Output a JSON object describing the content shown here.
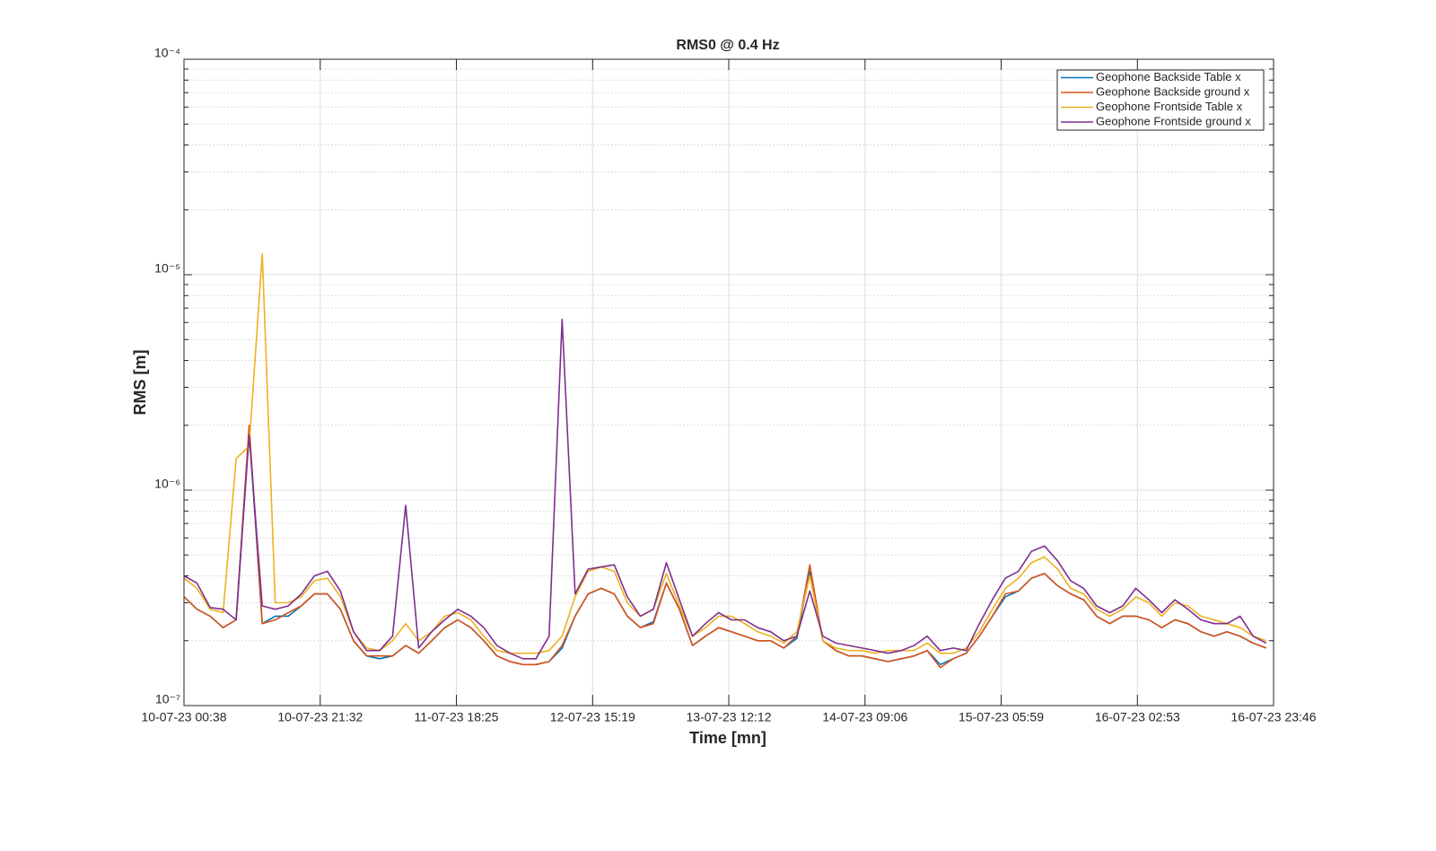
{
  "chart_data": {
    "type": "line",
    "title": "RMS0 @ 0.4 Hz",
    "x_label": "Time [mn]",
    "y_label": "RMS [m]",
    "log_y": true,
    "grid": true,
    "minor_grid": true,
    "legend": "top-right",
    "x": [
      "2023-07-10T00:38",
      "2023-07-10T02:38",
      "2023-07-10T04:38",
      "2023-07-10T06:38",
      "2023-07-10T08:38",
      "2023-07-10T10:38",
      "2023-07-10T12:38",
      "2023-07-10T14:38",
      "2023-07-10T16:38",
      "2023-07-10T18:38",
      "2023-07-10T20:38",
      "2023-07-10T22:38",
      "2023-07-11T00:38",
      "2023-07-11T02:38",
      "2023-07-11T04:38",
      "2023-07-11T06:38",
      "2023-07-11T08:38",
      "2023-07-11T10:38",
      "2023-07-11T12:38",
      "2023-07-11T14:38",
      "2023-07-11T16:38",
      "2023-07-11T18:38",
      "2023-07-11T20:38",
      "2023-07-11T22:38",
      "2023-07-12T00:38",
      "2023-07-12T02:38",
      "2023-07-12T04:38",
      "2023-07-12T06:38",
      "2023-07-12T08:38",
      "2023-07-12T10:38",
      "2023-07-12T12:38",
      "2023-07-12T14:38",
      "2023-07-12T16:38",
      "2023-07-12T18:38",
      "2023-07-12T20:38",
      "2023-07-12T22:38",
      "2023-07-13T00:38",
      "2023-07-13T02:38",
      "2023-07-13T04:38",
      "2023-07-13T06:38",
      "2023-07-13T08:38",
      "2023-07-13T10:38",
      "2023-07-13T12:38",
      "2023-07-13T14:38",
      "2023-07-13T16:38",
      "2023-07-13T18:38",
      "2023-07-13T20:38",
      "2023-07-13T22:38",
      "2023-07-14T00:38",
      "2023-07-14T02:38",
      "2023-07-14T04:38",
      "2023-07-14T06:38",
      "2023-07-14T08:38",
      "2023-07-14T10:38",
      "2023-07-14T12:38",
      "2023-07-14T14:38",
      "2023-07-14T16:38",
      "2023-07-14T18:38",
      "2023-07-14T20:38",
      "2023-07-14T22:38",
      "2023-07-15T00:38",
      "2023-07-15T02:38",
      "2023-07-15T04:38",
      "2023-07-15T06:38",
      "2023-07-15T08:38",
      "2023-07-15T10:38",
      "2023-07-15T12:38",
      "2023-07-15T14:38",
      "2023-07-15T16:38",
      "2023-07-15T18:38",
      "2023-07-15T20:38",
      "2023-07-15T22:38",
      "2023-07-16T00:38",
      "2023-07-16T02:38",
      "2023-07-16T04:38",
      "2023-07-16T06:38",
      "2023-07-16T08:38",
      "2023-07-16T10:38",
      "2023-07-16T12:38",
      "2023-07-16T14:38",
      "2023-07-16T16:38",
      "2023-07-16T18:38",
      "2023-07-16T20:38",
      "2023-07-16T22:38"
    ],
    "xlim": [
      "2023-07-10T00:38",
      "2023-07-16T23:46"
    ],
    "xticks": [
      {
        "value": "2023-07-10T00:38",
        "label": "10-07-23 00:38"
      },
      {
        "value": "2023-07-10T21:32",
        "label": "10-07-23 21:32"
      },
      {
        "value": "2023-07-11T18:25",
        "label": "11-07-23 18:25"
      },
      {
        "value": "2023-07-12T15:19",
        "label": "12-07-23 15:19"
      },
      {
        "value": "2023-07-13T12:12",
        "label": "13-07-23 12:12"
      },
      {
        "value": "2023-07-14T09:06",
        "label": "14-07-23 09:06"
      },
      {
        "value": "2023-07-15T05:59",
        "label": "15-07-23 05:59"
      },
      {
        "value": "2023-07-16T02:53",
        "label": "16-07-23 02:53"
      },
      {
        "value": "2023-07-16T23:46",
        "label": "16-07-23 23:46"
      }
    ],
    "ylim": [
      1e-07,
      0.0001
    ],
    "yticks": [
      {
        "value": 1e-07,
        "label": "10⁻⁷"
      },
      {
        "value": 1e-06,
        "label": "10⁻⁶"
      },
      {
        "value": 1e-05,
        "label": "10⁻⁵"
      },
      {
        "value": 0.0001,
        "label": "10⁻⁴"
      }
    ],
    "series": [
      {
        "name": "Geophone Backside Table x",
        "color": "#0072BD",
        "values": [
          3.2e-07,
          2.8e-07,
          2.6e-07,
          2.3e-07,
          2.5e-07,
          1.9e-06,
          2.4e-07,
          2.6e-07,
          2.6e-07,
          2.9e-07,
          3.3e-07,
          3.3e-07,
          2.8e-07,
          2e-07,
          1.7e-07,
          1.65e-07,
          1.7e-07,
          1.9e-07,
          1.75e-07,
          2e-07,
          2.3e-07,
          2.5e-07,
          2.3e-07,
          2e-07,
          1.7e-07,
          1.6e-07,
          1.55e-07,
          1.55e-07,
          1.6e-07,
          1.85e-07,
          2.6e-07,
          3.3e-07,
          3.5e-07,
          3.3e-07,
          2.6e-07,
          2.3e-07,
          2.45e-07,
          3.7e-07,
          2.8e-07,
          1.9e-07,
          2.1e-07,
          2.3e-07,
          2.2e-07,
          2.1e-07,
          2e-07,
          2e-07,
          1.85e-07,
          2.05e-07,
          4.2e-07,
          2e-07,
          1.8e-07,
          1.7e-07,
          1.7e-07,
          1.65e-07,
          1.6e-07,
          1.65e-07,
          1.7e-07,
          1.8e-07,
          1.55e-07,
          1.65e-07,
          1.75e-07,
          2.1e-07,
          2.6e-07,
          3.2e-07,
          3.4e-07,
          3.9e-07,
          4.1e-07,
          3.6e-07,
          3.3e-07,
          3.1e-07,
          2.6e-07,
          2.4e-07,
          2.6e-07,
          2.6e-07,
          2.5e-07,
          2.3e-07,
          2.5e-07,
          2.4e-07,
          2.2e-07,
          2.1e-07,
          2.2e-07,
          2.1e-07,
          1.95e-07,
          1.85e-07
        ]
      },
      {
        "name": "Geophone Backside ground x",
        "color": "#D95319",
        "values": [
          3.2e-07,
          2.8e-07,
          2.6e-07,
          2.3e-07,
          2.5e-07,
          2e-06,
          2.4e-07,
          2.5e-07,
          2.7e-07,
          2.9e-07,
          3.3e-07,
          3.3e-07,
          2.8e-07,
          2e-07,
          1.7e-07,
          1.7e-07,
          1.7e-07,
          1.9e-07,
          1.75e-07,
          2e-07,
          2.3e-07,
          2.5e-07,
          2.3e-07,
          2e-07,
          1.7e-07,
          1.6e-07,
          1.55e-07,
          1.55e-07,
          1.6e-07,
          1.9e-07,
          2.6e-07,
          3.3e-07,
          3.5e-07,
          3.3e-07,
          2.6e-07,
          2.3e-07,
          2.4e-07,
          3.7e-07,
          2.8e-07,
          1.9e-07,
          2.1e-07,
          2.3e-07,
          2.2e-07,
          2.1e-07,
          2e-07,
          2e-07,
          1.85e-07,
          2.1e-07,
          4.5e-07,
          2e-07,
          1.8e-07,
          1.7e-07,
          1.7e-07,
          1.65e-07,
          1.6e-07,
          1.65e-07,
          1.7e-07,
          1.8e-07,
          1.5e-07,
          1.65e-07,
          1.75e-07,
          2.1e-07,
          2.6e-07,
          3.3e-07,
          3.4e-07,
          3.9e-07,
          4.1e-07,
          3.6e-07,
          3.3e-07,
          3.1e-07,
          2.6e-07,
          2.4e-07,
          2.6e-07,
          2.6e-07,
          2.5e-07,
          2.3e-07,
          2.5e-07,
          2.4e-07,
          2.2e-07,
          2.1e-07,
          2.2e-07,
          2.1e-07,
          1.95e-07,
          1.85e-07
        ]
      },
      {
        "name": "Geophone Frontside Table x",
        "color": "#EDB120",
        "values": [
          3.9e-07,
          3.5e-07,
          2.8e-07,
          2.7e-07,
          1.4e-06,
          1.6e-06,
          1.25e-05,
          3e-07,
          3e-07,
          3.2e-07,
          3.8e-07,
          3.9e-07,
          3.2e-07,
          2.2e-07,
          1.85e-07,
          1.8e-07,
          2e-07,
          2.4e-07,
          2e-07,
          2.2e-07,
          2.6e-07,
          2.7e-07,
          2.5e-07,
          2.1e-07,
          1.8e-07,
          1.75e-07,
          1.75e-07,
          1.75e-07,
          1.8e-07,
          2.1e-07,
          3.2e-07,
          4.2e-07,
          4.4e-07,
          4.2e-07,
          3e-07,
          2.6e-07,
          2.8e-07,
          4.1e-07,
          2.9e-07,
          2.1e-07,
          2.3e-07,
          2.6e-07,
          2.6e-07,
          2.4e-07,
          2.2e-07,
          2.1e-07,
          1.95e-07,
          2.2e-07,
          4e-07,
          2e-07,
          1.85e-07,
          1.8e-07,
          1.8e-07,
          1.75e-07,
          1.8e-07,
          1.8e-07,
          1.8e-07,
          1.95e-07,
          1.75e-07,
          1.75e-07,
          1.85e-07,
          2.2e-07,
          2.8e-07,
          3.5e-07,
          3.9e-07,
          4.6e-07,
          4.9e-07,
          4.3e-07,
          3.5e-07,
          3.3e-07,
          2.8e-07,
          2.6e-07,
          2.8e-07,
          3.2e-07,
          3e-07,
          2.6e-07,
          3e-07,
          2.9e-07,
          2.6e-07,
          2.5e-07,
          2.4e-07,
          2.3e-07,
          2.1e-07,
          2e-07
        ]
      },
      {
        "name": "Geophone Frontside ground x",
        "color": "#7E2F8E",
        "values": [
          4e-07,
          3.7e-07,
          2.85e-07,
          2.8e-07,
          2.5e-07,
          1.8e-06,
          2.9e-07,
          2.8e-07,
          2.9e-07,
          3.3e-07,
          4e-07,
          4.2e-07,
          3.4e-07,
          2.2e-07,
          1.8e-07,
          1.8e-07,
          2.1e-07,
          8.5e-07,
          1.85e-07,
          2.2e-07,
          2.5e-07,
          2.8e-07,
          2.6e-07,
          2.3e-07,
          1.9e-07,
          1.75e-07,
          1.65e-07,
          1.65e-07,
          2.1e-07,
          6.2e-06,
          3.3e-07,
          4.3e-07,
          4.4e-07,
          4.5e-07,
          3.2e-07,
          2.6e-07,
          2.8e-07,
          4.6e-07,
          3.1e-07,
          2.1e-07,
          2.4e-07,
          2.7e-07,
          2.5e-07,
          2.5e-07,
          2.3e-07,
          2.2e-07,
          2e-07,
          2.1e-07,
          3.4e-07,
          2.1e-07,
          1.95e-07,
          1.9e-07,
          1.85e-07,
          1.8e-07,
          1.75e-07,
          1.8e-07,
          1.9e-07,
          2.1e-07,
          1.8e-07,
          1.85e-07,
          1.8e-07,
          2.4e-07,
          3.1e-07,
          3.9e-07,
          4.2e-07,
          5.2e-07,
          5.5e-07,
          4.7e-07,
          3.8e-07,
          3.5e-07,
          2.9e-07,
          2.7e-07,
          2.9e-07,
          3.5e-07,
          3.1e-07,
          2.7e-07,
          3.1e-07,
          2.8e-07,
          2.5e-07,
          2.4e-07,
          2.4e-07,
          2.6e-07,
          2.1e-07,
          1.95e-07
        ]
      }
    ]
  }
}
